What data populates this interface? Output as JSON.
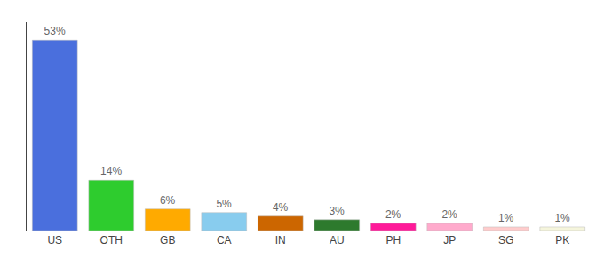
{
  "chart_data": {
    "type": "bar",
    "categories": [
      "US",
      "OTH",
      "GB",
      "CA",
      "IN",
      "AU",
      "PH",
      "JP",
      "SG",
      "PK"
    ],
    "values": [
      53,
      14,
      6,
      5,
      4,
      3,
      2,
      2,
      1,
      1
    ],
    "value_labels": [
      "53%",
      "14%",
      "6%",
      "5%",
      "4%",
      "3%",
      "2%",
      "2%",
      "1%",
      "1%"
    ],
    "colors": [
      "#4a6fdd",
      "#2ecc2e",
      "#ffaa00",
      "#88ccee",
      "#cc6600",
      "#2d7a2d",
      "#ff1a99",
      "#ffaacc",
      "#ffcccc",
      "#f5f5dc"
    ],
    "ylim": [
      0,
      58
    ],
    "data_labels": true,
    "tick_labels": "x",
    "grid": false
  }
}
